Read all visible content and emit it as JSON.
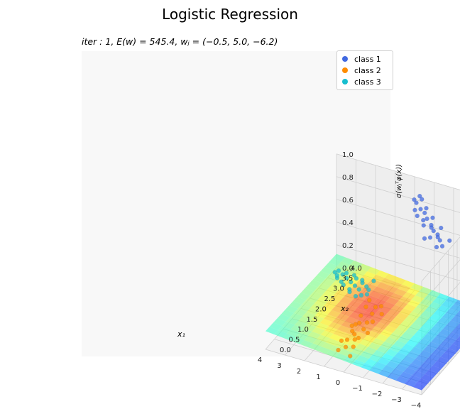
{
  "figure": {
    "title": "Logistic Regression",
    "subtitle": "iter : 1, E(w) = 545.4, wⱼ = (−0.5, 5.0, −6.2)"
  },
  "chart_data": {
    "type": "scatter",
    "projection": "3d",
    "surface_colormap": "jet",
    "x1_ticks": [
      "−4",
      "−3",
      "−2",
      "−1",
      "0",
      "1",
      "2",
      "3",
      "4"
    ],
    "x2_ticks": [
      "0.0",
      "0.5",
      "1.0",
      "1.5",
      "2.0",
      "2.5",
      "3.0",
      "3.5",
      "4.0"
    ],
    "z_ticks": [
      "0.0",
      "0.2",
      "0.4",
      "0.6",
      "0.8",
      "1.0"
    ],
    "xlabel": "x₁",
    "ylabel": "x₂",
    "zlabel": "σ(wⱼᵀφ(x))",
    "xlim": [
      -4,
      4
    ],
    "ylim": [
      0,
      4
    ],
    "zlim": [
      0,
      1
    ],
    "grid": true,
    "legend_position": "top-right",
    "series": [
      {
        "name": "class 1",
        "color": "#4169e1",
        "points": [
          [
            -3.6,
            1.6,
            1.0
          ],
          [
            -3.3,
            1.8,
            1.0
          ],
          [
            -3.0,
            2.0,
            1.0
          ],
          [
            -2.7,
            2.1,
            1.0
          ],
          [
            -2.4,
            2.3,
            1.0
          ],
          [
            -2.0,
            2.5,
            1.0
          ],
          [
            -1.7,
            2.7,
            1.0
          ],
          [
            -1.4,
            2.8,
            1.0
          ],
          [
            -1.0,
            3.0,
            1.0
          ],
          [
            -0.8,
            3.1,
            1.0
          ],
          [
            -3.4,
            1.5,
            1.0
          ],
          [
            -3.1,
            1.9,
            1.0
          ],
          [
            -2.8,
            1.8,
            1.0
          ],
          [
            -2.5,
            2.2,
            1.0
          ],
          [
            -2.2,
            2.6,
            1.0
          ],
          [
            -1.9,
            2.4,
            1.0
          ],
          [
            -1.6,
            2.9,
            1.0
          ],
          [
            -1.2,
            2.7,
            1.0
          ],
          [
            -0.9,
            3.3,
            1.0
          ],
          [
            -2.9,
            2.3,
            1.0
          ],
          [
            -3.7,
            1.9,
            1.0
          ],
          [
            -2.1,
            2.2,
            1.0
          ],
          [
            -1.5,
            2.5,
            1.0
          ],
          [
            -2.6,
            1.7,
            1.0
          ],
          [
            -1.1,
            3.2,
            1.0
          ]
        ]
      },
      {
        "name": "class 2",
        "color": "#ff8c00",
        "points": [
          [
            0.5,
            1.1,
            0.0
          ],
          [
            0.6,
            1.5,
            0.0
          ],
          [
            0.7,
            1.9,
            0.0
          ],
          [
            0.8,
            2.2,
            0.0
          ],
          [
            0.9,
            2.6,
            0.0
          ],
          [
            1.0,
            1.3,
            0.0
          ],
          [
            1.1,
            1.7,
            0.0
          ],
          [
            1.2,
            2.0,
            0.0
          ],
          [
            1.3,
            2.4,
            0.0
          ],
          [
            1.4,
            2.8,
            0.0
          ],
          [
            0.4,
            1.8,
            0.0
          ],
          [
            0.6,
            2.3,
            0.0
          ],
          [
            0.8,
            1.0,
            0.0
          ],
          [
            1.0,
            2.9,
            0.0
          ],
          [
            1.2,
            1.2,
            0.0
          ],
          [
            0.5,
            2.7,
            0.0
          ],
          [
            0.9,
            1.6,
            0.0
          ],
          [
            1.1,
            2.1,
            0.0
          ],
          [
            0.7,
            1.4,
            0.0
          ],
          [
            1.3,
            1.9,
            0.0
          ],
          [
            0.3,
            0.7,
            0.0
          ],
          [
            1.5,
            3.1,
            0.0
          ],
          [
            0.8,
            3.0,
            0.0
          ],
          [
            1.0,
            0.8,
            0.0
          ]
        ]
      },
      {
        "name": "class 3",
        "color": "#17becf",
        "points": [
          [
            2.0,
            3.2,
            0.0
          ],
          [
            2.3,
            3.4,
            0.0
          ],
          [
            2.6,
            3.5,
            0.0
          ],
          [
            2.9,
            3.6,
            0.0
          ],
          [
            3.2,
            3.7,
            0.0
          ],
          [
            3.5,
            3.8,
            0.0
          ],
          [
            3.8,
            3.9,
            0.0
          ],
          [
            2.1,
            3.6,
            0.0
          ],
          [
            2.4,
            3.7,
            0.0
          ],
          [
            2.7,
            3.3,
            0.0
          ],
          [
            3.0,
            3.9,
            0.0
          ],
          [
            3.3,
            3.5,
            0.0
          ],
          [
            3.6,
            3.6,
            0.0
          ],
          [
            1.9,
            3.5,
            0.0
          ],
          [
            2.2,
            3.1,
            0.0
          ],
          [
            2.5,
            3.8,
            0.0
          ],
          [
            2.8,
            3.8,
            0.0
          ],
          [
            3.1,
            3.4,
            0.0
          ],
          [
            3.4,
            3.9,
            0.0
          ],
          [
            3.7,
            3.7,
            0.0
          ],
          [
            1.8,
            3.3,
            0.0
          ],
          [
            2.0,
            3.9,
            0.0
          ],
          [
            3.9,
            3.8,
            0.0
          ],
          [
            2.6,
            3.2,
            0.0
          ]
        ]
      }
    ]
  }
}
